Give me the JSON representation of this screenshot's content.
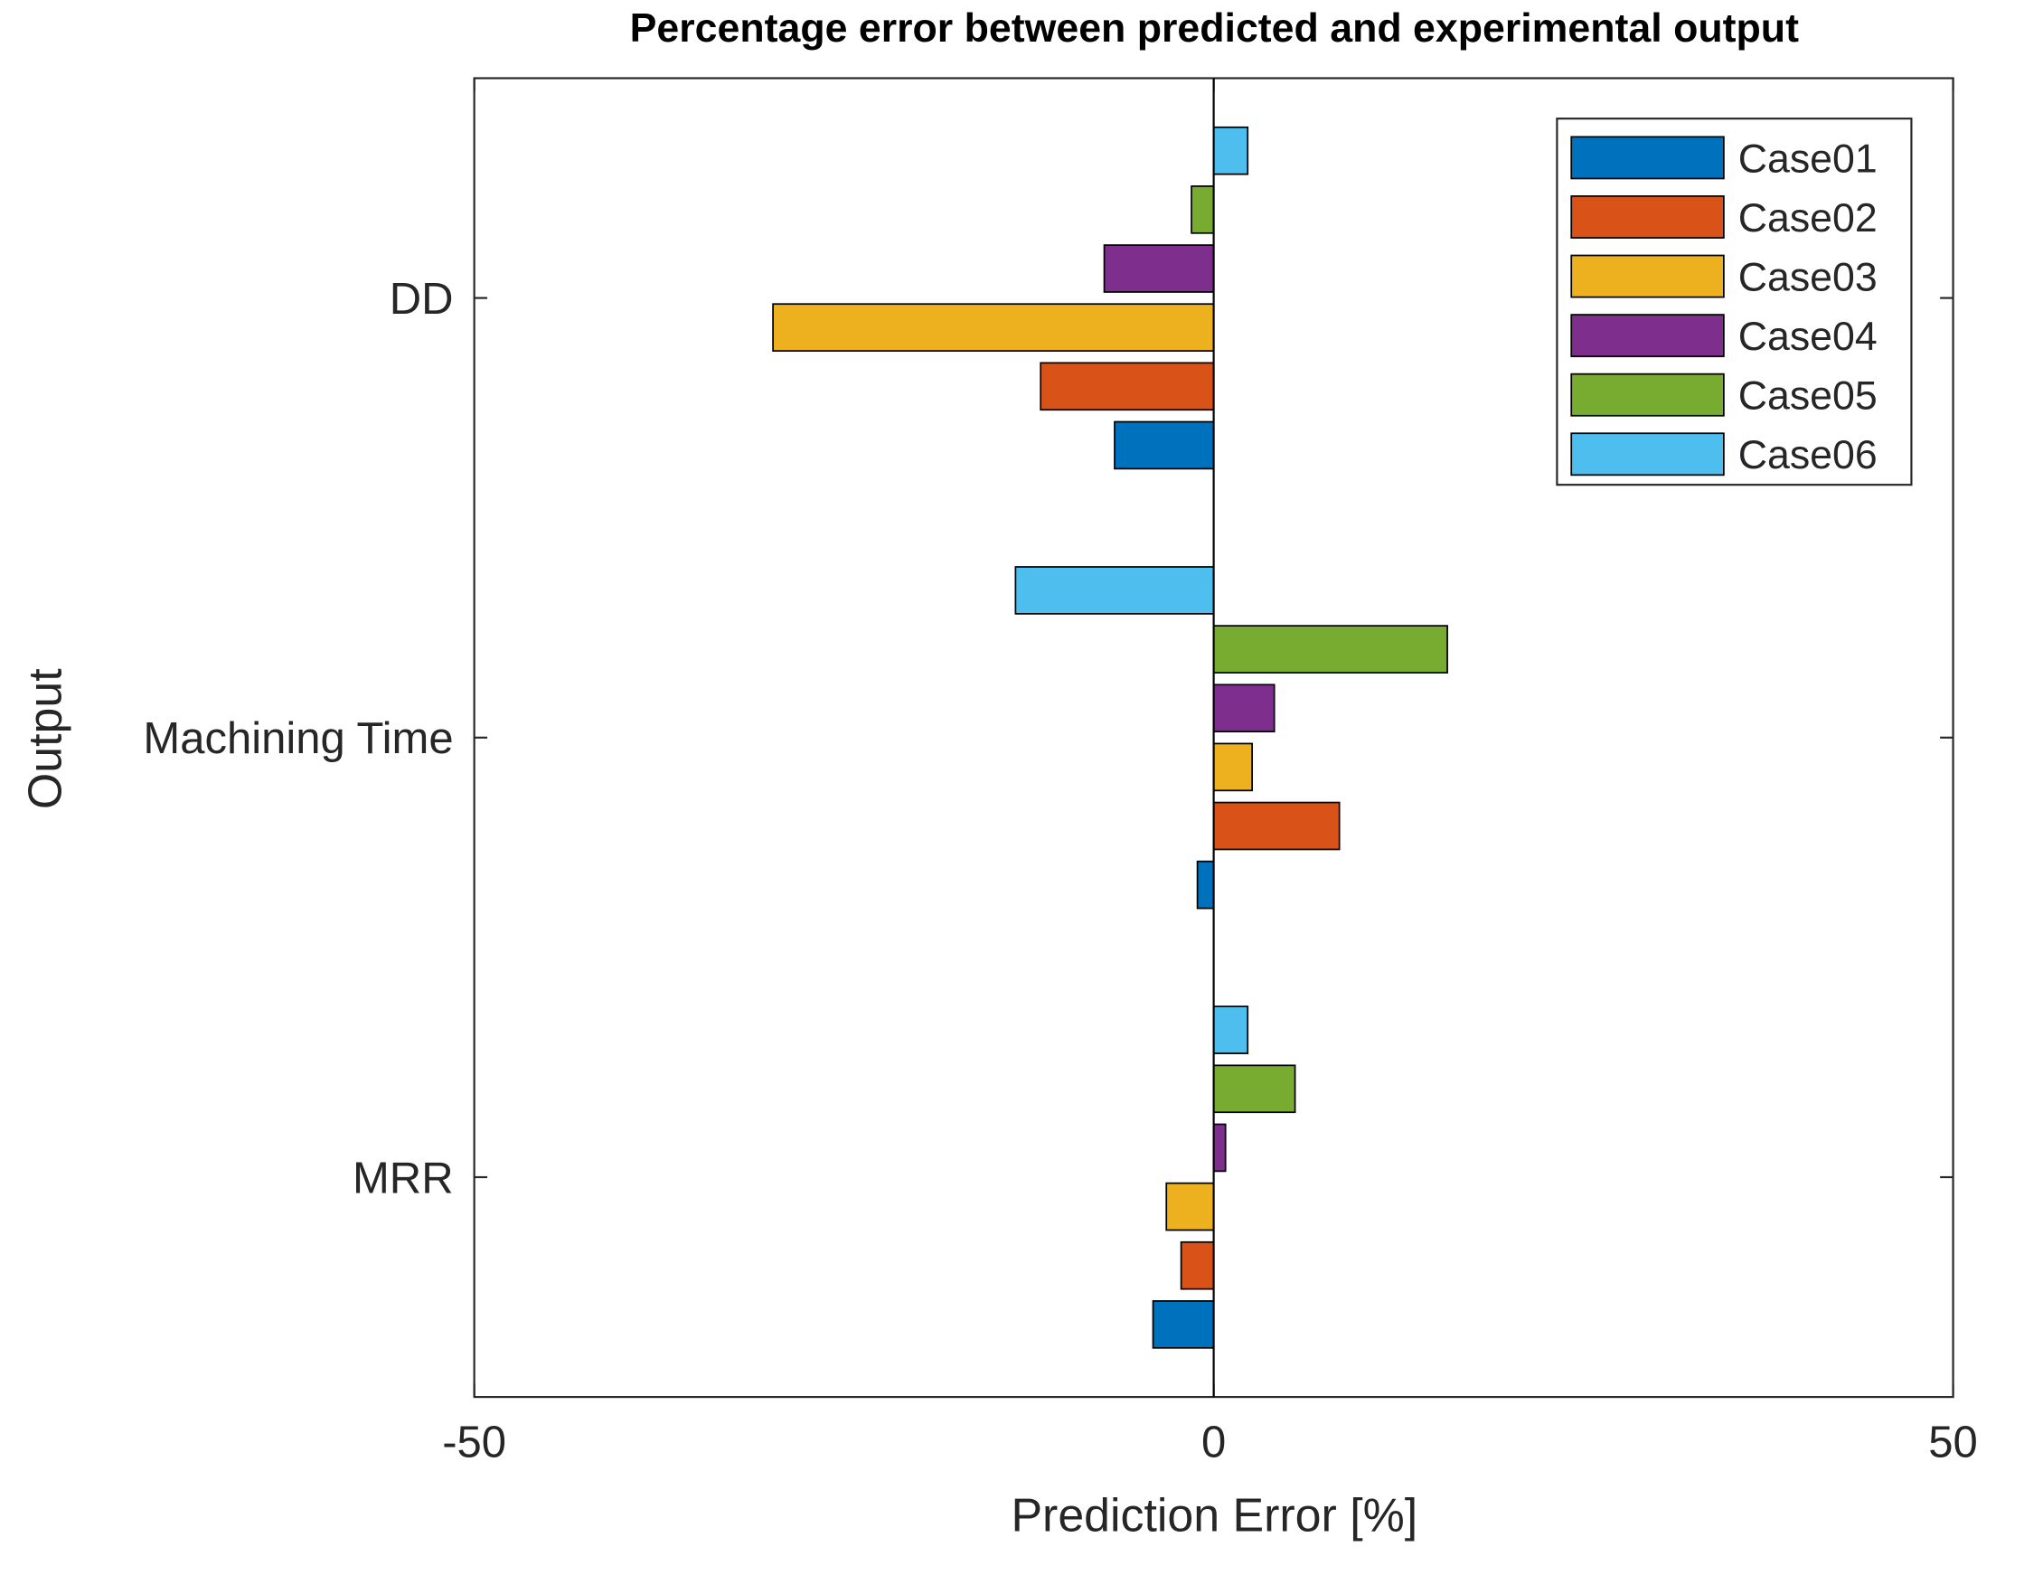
{
  "chart_data": {
    "type": "barh",
    "title": "Percentage error between predicted and experimental output",
    "xlabel": "Prediction Error [%]",
    "ylabel": "Output",
    "categories": [
      "MRR",
      "Machining Time",
      "DD"
    ],
    "series": [
      {
        "name": "Case01",
        "color": "#0072BD",
        "values": [
          -4.1,
          -1.1,
          -6.7
        ]
      },
      {
        "name": "Case02",
        "color": "#D95319",
        "values": [
          -2.2,
          8.5,
          -11.7
        ]
      },
      {
        "name": "Case03",
        "color": "#EDB120",
        "values": [
          -3.2,
          2.6,
          -29.8
        ]
      },
      {
        "name": "Case04",
        "color": "#7E2F8E",
        "values": [
          0.8,
          4.1,
          -7.4
        ]
      },
      {
        "name": "Case05",
        "color": "#77AC30",
        "values": [
          5.5,
          15.8,
          -1.5
        ]
      },
      {
        "name": "Case06",
        "color": "#4DBEEE",
        "values": [
          2.3,
          -13.4,
          2.3
        ]
      }
    ],
    "xlim": [
      -50,
      50
    ],
    "xticks": [
      -50,
      0,
      50
    ],
    "legend": "top-right"
  }
}
